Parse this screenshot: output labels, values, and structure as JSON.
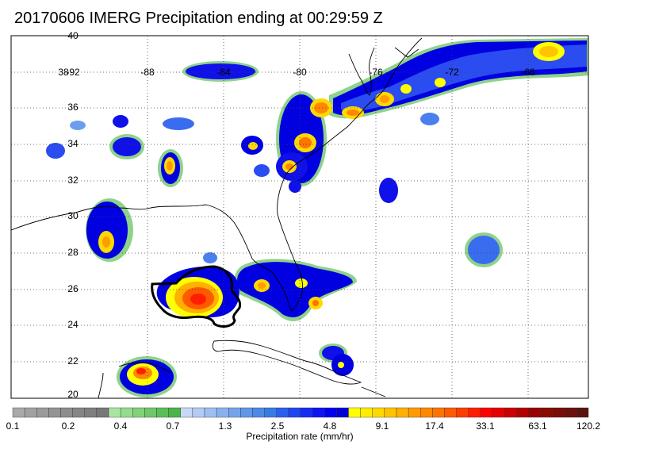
{
  "title": "20170606 IMERG Precipitation ending at 00:29:59 Z",
  "map": {
    "lon_labels": [
      "-88",
      "-84",
      "-80",
      "-76",
      "-72",
      "-68"
    ],
    "lon_label_values": [
      -88,
      -84,
      -80,
      -76,
      -72,
      -68
    ],
    "lat_labels": [
      "20",
      "22",
      "24",
      "26",
      "28",
      "30",
      "32",
      "34",
      "36",
      "38",
      "40"
    ],
    "lat_label_values": [
      20,
      22,
      24,
      26,
      28,
      30,
      32,
      34,
      36,
      38,
      40
    ],
    "overlap_label": "-92",
    "grid": "dotted",
    "coastlines": true
  },
  "colorbar": {
    "label": "Precipitation rate (mm/hr)",
    "tick_labels": [
      "0.1",
      "0.2",
      "0.4",
      "0.7",
      "1.3",
      "2.5",
      "4.8",
      "9.1",
      "17.4",
      "33.1",
      "63.1",
      "120.2"
    ],
    "colors": [
      "#a9a9a9",
      "#a2a2a2",
      "#9b9b9b",
      "#949494",
      "#8d8d8d",
      "#868686",
      "#7f7f7f",
      "#787878",
      "#a8e6a0",
      "#95dc8c",
      "#82d27a",
      "#6fc869",
      "#5cbe58",
      "#4ab448",
      "#c9d8f8",
      "#b4cbf5",
      "#9fbef2",
      "#8ab1ef",
      "#75a4ec",
      "#6097e9",
      "#4b8ae6",
      "#367de3",
      "#2a5ff0",
      "#2046f2",
      "#162df4",
      "#0c14f6",
      "#0000f0",
      "#0000d8",
      "#ffff00",
      "#ffec00",
      "#ffd800",
      "#ffc400",
      "#ffb000",
      "#ff9c00",
      "#ff8800",
      "#ff7400",
      "#ff5a00",
      "#ff3c00",
      "#ff1e00",
      "#ff0000",
      "#e60000",
      "#cc0000",
      "#b30000",
      "#990000",
      "#8b0a00",
      "#7a0d05",
      "#6b100a",
      "#5c120e"
    ]
  }
}
